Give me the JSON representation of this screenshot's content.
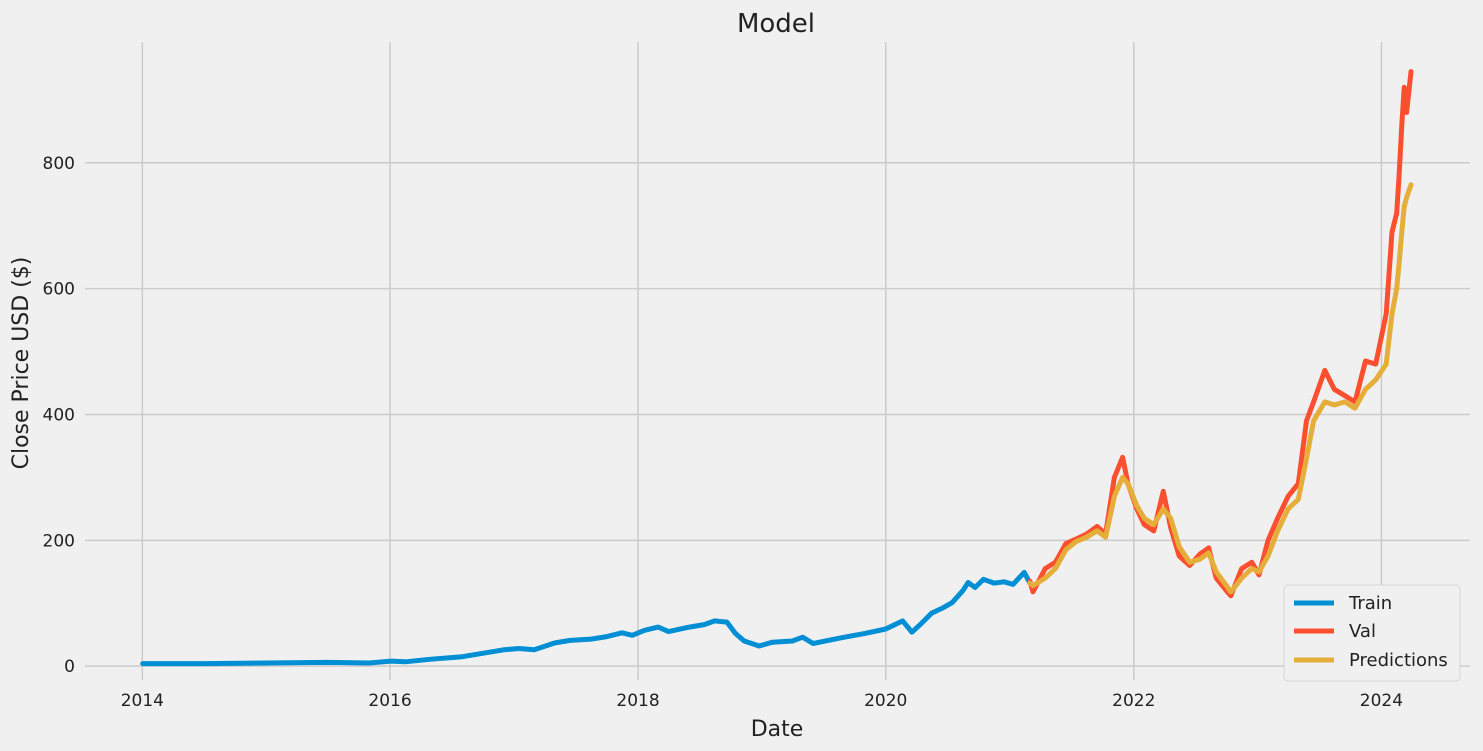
{
  "chart_data": {
    "type": "line",
    "title": "Model",
    "xlabel": "Date",
    "ylabel": "Close Price USD ($)",
    "xlim": [
      "2013-07-16",
      "2024-09-18"
    ],
    "ylim": [
      -22,
      992
    ],
    "x_ticks": [
      "2014",
      "2016",
      "2018",
      "2020",
      "2022",
      "2024"
    ],
    "y_ticks": [
      0,
      200,
      400,
      600,
      800
    ],
    "grid": true,
    "legend_position": "lower-right",
    "colors": {
      "background": "#f0f0f0",
      "grid": "#cbcbcb"
    },
    "series": [
      {
        "name": "Train",
        "color": "#008fd5",
        "x": [
          "2014-01-02",
          "2014-07-01",
          "2015-01-02",
          "2015-07-01",
          "2015-11-01",
          "2016-01-04",
          "2016-02-15",
          "2016-05-01",
          "2016-08-01",
          "2016-12-01",
          "2017-01-15",
          "2017-03-01",
          "2017-05-01",
          "2017-06-15",
          "2017-08-15",
          "2017-10-01",
          "2017-11-15",
          "2017-12-15",
          "2018-01-20",
          "2018-03-01",
          "2018-04-01",
          "2018-06-01",
          "2018-07-15",
          "2018-08-15",
          "2018-09-20",
          "2018-10-15",
          "2018-11-10",
          "2018-12-24",
          "2019-02-01",
          "2019-04-01",
          "2019-05-01",
          "2019-06-01",
          "2019-07-15",
          "2019-09-01",
          "2019-11-01",
          "2020-01-01",
          "2020-02-20",
          "2020-03-18",
          "2020-04-15",
          "2020-05-15",
          "2020-06-15",
          "2020-07-15",
          "2020-08-15",
          "2020-08-31",
          "2020-09-20",
          "2020-10-15",
          "2020-11-15",
          "2020-12-15",
          "2021-01-10",
          "2021-02-12",
          "2021-03-01"
        ],
        "y": [
          4,
          4,
          5,
          6,
          5,
          8,
          7,
          11,
          15,
          26,
          28,
          26,
          37,
          41,
          43,
          47,
          53,
          49,
          57,
          62,
          55,
          62,
          66,
          72,
          70,
          52,
          40,
          32,
          38,
          40,
          46,
          36,
          41,
          46,
          52,
          59,
          72,
          54,
          68,
          84,
          92,
          101,
          120,
          133,
          125,
          138,
          132,
          134,
          130,
          149,
          132
        ]
      },
      {
        "name": "Val",
        "color": "#fc4f30",
        "x": [
          "2021-03-01",
          "2021-03-10",
          "2021-04-15",
          "2021-05-15",
          "2021-06-15",
          "2021-07-15",
          "2021-08-15",
          "2021-09-15",
          "2021-10-10",
          "2021-11-05",
          "2021-11-29",
          "2021-12-15",
          "2022-01-10",
          "2022-02-01",
          "2022-03-01",
          "2022-03-29",
          "2022-04-20",
          "2022-05-15",
          "2022-06-15",
          "2022-07-15",
          "2022-08-10",
          "2022-09-01",
          "2022-10-01",
          "2022-10-14",
          "2022-11-15",
          "2022-12-15",
          "2023-01-05",
          "2023-02-01",
          "2023-03-01",
          "2023-04-01",
          "2023-05-01",
          "2023-05-25",
          "2023-06-15",
          "2023-07-18",
          "2023-08-15",
          "2023-09-15",
          "2023-10-15",
          "2023-11-15",
          "2023-12-15",
          "2024-01-15",
          "2024-02-01",
          "2024-02-15",
          "2024-02-22",
          "2024-03-01",
          "2024-03-08",
          "2024-03-15",
          "2024-03-28"
        ],
        "y": [
          135,
          118,
          155,
          165,
          195,
          202,
          210,
          222,
          210,
          300,
          332,
          290,
          250,
          225,
          215,
          278,
          220,
          175,
          160,
          178,
          188,
          140,
          120,
          112,
          155,
          165,
          145,
          200,
          235,
          270,
          290,
          390,
          420,
          470,
          440,
          430,
          420,
          485,
          480,
          560,
          690,
          720,
          780,
          860,
          920,
          880,
          945
        ]
      },
      {
        "name": "Predictions",
        "color": "#e5ae38",
        "x": [
          "2021-03-01",
          "2021-03-10",
          "2021-04-15",
          "2021-05-15",
          "2021-06-15",
          "2021-07-15",
          "2021-08-15",
          "2021-09-15",
          "2021-10-10",
          "2021-11-05",
          "2021-11-29",
          "2021-12-15",
          "2022-01-10",
          "2022-02-01",
          "2022-03-01",
          "2022-03-29",
          "2022-04-20",
          "2022-05-15",
          "2022-06-15",
          "2022-07-15",
          "2022-08-10",
          "2022-09-01",
          "2022-10-01",
          "2022-10-14",
          "2022-11-15",
          "2022-12-15",
          "2023-01-05",
          "2023-02-01",
          "2023-03-01",
          "2023-04-01",
          "2023-05-01",
          "2023-05-25",
          "2023-06-15",
          "2023-07-18",
          "2023-08-15",
          "2023-09-15",
          "2023-10-15",
          "2023-11-15",
          "2023-12-15",
          "2024-01-15",
          "2024-02-01",
          "2024-02-15",
          "2024-02-22",
          "2024-03-01",
          "2024-03-08",
          "2024-03-15",
          "2024-03-28"
        ],
        "y": [
          132,
          128,
          140,
          155,
          185,
          198,
          205,
          215,
          205,
          270,
          300,
          290,
          255,
          235,
          225,
          250,
          235,
          190,
          165,
          170,
          180,
          150,
          128,
          118,
          140,
          155,
          150,
          175,
          215,
          250,
          265,
          330,
          390,
          420,
          415,
          420,
          410,
          440,
          455,
          480,
          560,
          600,
          640,
          690,
          730,
          745,
          765
        ]
      }
    ]
  }
}
